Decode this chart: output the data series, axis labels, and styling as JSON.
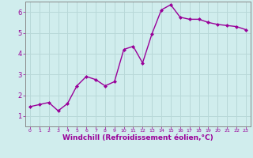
{
  "x": [
    0,
    1,
    2,
    3,
    4,
    5,
    6,
    7,
    8,
    9,
    10,
    11,
    12,
    13,
    14,
    15,
    16,
    17,
    18,
    19,
    20,
    21,
    22,
    23
  ],
  "y": [
    1.45,
    1.55,
    1.65,
    1.25,
    1.6,
    2.45,
    2.9,
    2.75,
    2.45,
    2.65,
    4.2,
    4.35,
    3.55,
    4.95,
    6.1,
    6.35,
    5.75,
    5.65,
    5.65,
    5.5,
    5.4,
    5.35,
    5.3,
    5.15
  ],
  "line_color": "#990099",
  "marker": "D",
  "marker_size": 2.0,
  "xlabel": "Windchill (Refroidissement éolien,°C)",
  "xlabel_fontsize": 6.5,
  "ylim": [
    0.5,
    6.5
  ],
  "xlim": [
    -0.5,
    23.5
  ],
  "yticks": [
    1,
    2,
    3,
    4,
    5,
    6
  ],
  "xticks": [
    0,
    1,
    2,
    3,
    4,
    5,
    6,
    7,
    8,
    9,
    10,
    11,
    12,
    13,
    14,
    15,
    16,
    17,
    18,
    19,
    20,
    21,
    22,
    23
  ],
  "bg_color": "#d0eded",
  "grid_color": "#b8d8d8",
  "tick_label_color": "#990099",
  "spine_color": "#888888",
  "line_width": 1.0,
  "xlabel_bold": true
}
